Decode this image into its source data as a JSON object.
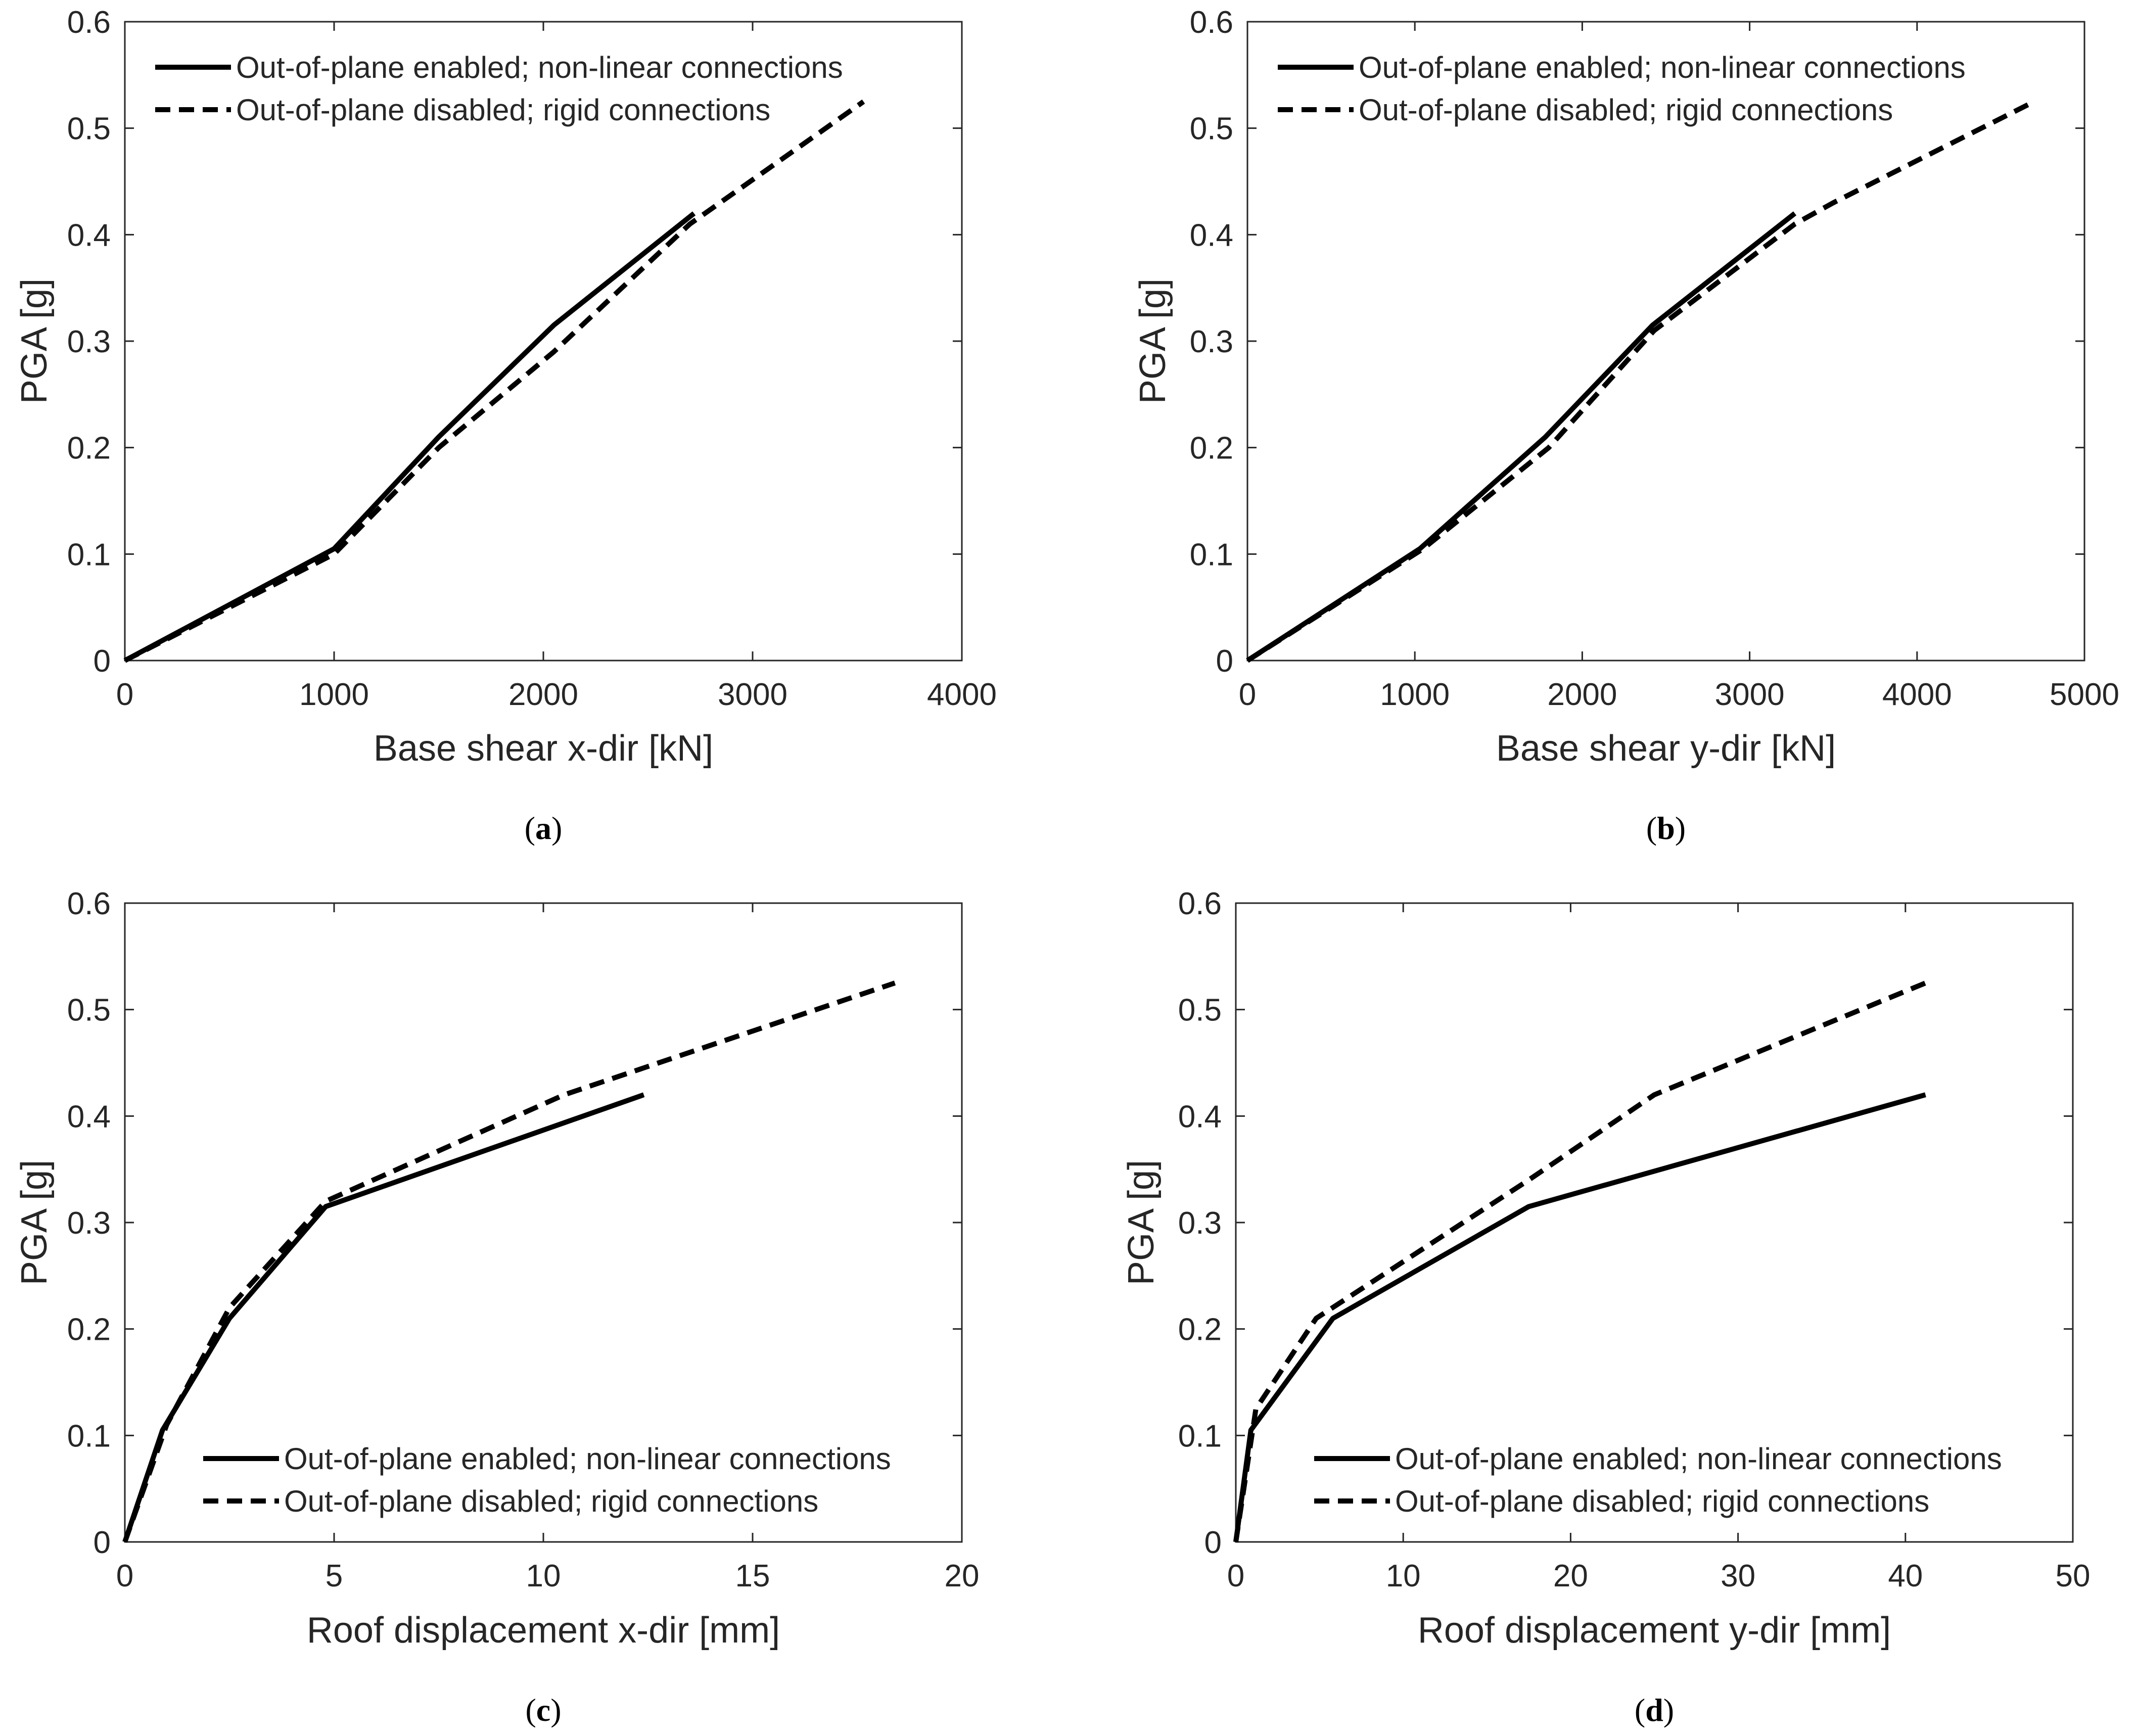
{
  "chart_data": [
    {
      "type": "line",
      "panel": "a",
      "caption": "a",
      "xlabel": "Base shear x-dir [kN]",
      "ylabel": "PGA [g]",
      "xlim": [
        0,
        4000
      ],
      "ylim": [
        0,
        0.6
      ],
      "xticks": [
        0,
        1000,
        2000,
        3000,
        4000
      ],
      "yticks": [
        0,
        0.1,
        0.2,
        0.3,
        0.4,
        0.5,
        0.6
      ],
      "legend_location": "top-left",
      "series": [
        {
          "name": "Out-of-plane enabled; non-linear connections",
          "style": "solid",
          "x": [
            0,
            1000,
            1500,
            2050,
            2720
          ],
          "y": [
            0,
            0.105,
            0.21,
            0.315,
            0.42
          ]
        },
        {
          "name": "Out-of-plane disabled; rigid connections",
          "style": "dashed",
          "x": [
            0,
            1000,
            1500,
            2050,
            2700,
            3530
          ],
          "y": [
            0,
            0.1,
            0.2,
            0.29,
            0.41,
            0.525
          ]
        }
      ]
    },
    {
      "type": "line",
      "panel": "b",
      "caption": "b",
      "xlabel": "Base shear y-dir [kN]",
      "ylabel": "PGA [g]",
      "xlim": [
        0,
        5000
      ],
      "ylim": [
        0,
        0.6
      ],
      "xticks": [
        0,
        1000,
        2000,
        3000,
        4000,
        5000
      ],
      "yticks": [
        0,
        0.1,
        0.2,
        0.3,
        0.4,
        0.5,
        0.6
      ],
      "legend_location": "top-left",
      "series": [
        {
          "name": "Out-of-plane enabled; non-linear connections",
          "style": "solid",
          "x": [
            0,
            1030,
            1780,
            2420,
            3270
          ],
          "y": [
            0,
            0.105,
            0.21,
            0.315,
            0.42
          ]
        },
        {
          "name": "Out-of-plane disabled; rigid connections",
          "style": "dashed",
          "x": [
            0,
            1050,
            1800,
            2430,
            3270,
            3500,
            4700
          ],
          "y": [
            0,
            0.105,
            0.2,
            0.31,
            0.41,
            0.43,
            0.525
          ]
        }
      ]
    },
    {
      "type": "line",
      "panel": "c",
      "caption": "c",
      "xlabel": "Roof displacement x-dir [mm]",
      "ylabel": "PGA [g]",
      "xlim": [
        0,
        20
      ],
      "ylim": [
        0,
        0.6
      ],
      "xticks": [
        0,
        5,
        10,
        15,
        20
      ],
      "yticks": [
        0,
        0.1,
        0.2,
        0.3,
        0.4,
        0.5,
        0.6
      ],
      "legend_location": "bottom-right",
      "series": [
        {
          "name": "Out-of-plane enabled; non-linear connections",
          "style": "solid",
          "x": [
            0,
            0.9,
            2.5,
            4.8,
            12.4
          ],
          "y": [
            0,
            0.105,
            0.21,
            0.315,
            0.42
          ]
        },
        {
          "name": "Out-of-plane disabled; rigid connections",
          "style": "dashed",
          "x": [
            0,
            1.0,
            2.5,
            4.8,
            10.5,
            18.4
          ],
          "y": [
            0,
            0.11,
            0.22,
            0.32,
            0.42,
            0.525
          ]
        }
      ]
    },
    {
      "type": "line",
      "panel": "d",
      "caption": "d",
      "xlabel": "Roof displacement y-dir [mm]",
      "ylabel": "PGA [g]",
      "xlim": [
        0,
        50
      ],
      "ylim": [
        0,
        0.6
      ],
      "xticks": [
        0,
        10,
        20,
        30,
        40,
        50
      ],
      "yticks": [
        0,
        0.1,
        0.2,
        0.3,
        0.4,
        0.5,
        0.6
      ],
      "legend_location": "bottom-right",
      "series": [
        {
          "name": "Out-of-plane enabled; non-linear connections",
          "style": "solid",
          "x": [
            0,
            0.9,
            5.8,
            17.5,
            41.2
          ],
          "y": [
            0,
            0.105,
            0.21,
            0.315,
            0.42
          ]
        },
        {
          "name": "Out-of-plane disabled; rigid connections",
          "style": "dashed",
          "x": [
            0,
            1.2,
            4.8,
            17.5,
            25.0,
            41.2
          ],
          "y": [
            0,
            0.125,
            0.21,
            0.34,
            0.42,
            0.525
          ]
        }
      ]
    }
  ]
}
